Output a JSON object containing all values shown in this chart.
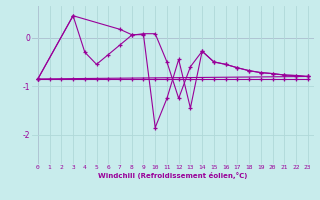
{
  "xlabel": "Windchill (Refroidissement éolien,°C)",
  "background_color": "#c8ecec",
  "grid_color": "#b0d8d8",
  "line_color": "#990099",
  "xlim": [
    -0.5,
    23.5
  ],
  "ylim": [
    -2.6,
    0.65
  ],
  "yticks": [
    -2,
    -1,
    0
  ],
  "xticks": [
    0,
    1,
    2,
    3,
    4,
    5,
    6,
    7,
    8,
    9,
    10,
    11,
    12,
    13,
    14,
    15,
    16,
    17,
    18,
    19,
    20,
    21,
    22,
    23
  ],
  "series_data": [
    {
      "x": [
        0,
        1,
        2,
        3,
        4,
        5,
        6,
        7,
        8,
        9,
        10,
        11,
        12,
        13,
        14,
        15,
        16,
        17,
        18,
        19,
        20,
        21,
        22,
        23
      ],
      "y": [
        -0.85,
        -0.85,
        -0.85,
        -0.85,
        -0.85,
        -0.85,
        -0.85,
        -0.85,
        -0.85,
        -0.85,
        -0.85,
        -0.85,
        -0.85,
        -0.85,
        -0.85,
        -0.85,
        -0.85,
        -0.85,
        -0.85,
        -0.85,
        -0.85,
        -0.85,
        -0.85,
        -0.85
      ]
    },
    {
      "x": [
        0,
        3,
        4,
        5,
        6,
        7,
        8,
        9,
        10,
        11,
        12,
        13,
        14,
        15,
        16,
        17,
        18,
        19,
        20,
        21,
        22,
        23
      ],
      "y": [
        -0.85,
        0.45,
        -0.3,
        -0.55,
        -0.35,
        -0.15,
        0.05,
        0.08,
        0.08,
        -0.5,
        -1.25,
        -0.6,
        -0.28,
        -0.5,
        -0.55,
        -0.62,
        -0.68,
        -0.72,
        -0.74,
        -0.77,
        -0.78,
        -0.8
      ]
    },
    {
      "x": [
        0,
        3,
        7,
        8,
        9,
        10,
        11,
        12,
        13,
        14,
        15,
        16,
        17,
        18,
        19,
        20,
        21,
        22,
        23
      ],
      "y": [
        -0.85,
        0.45,
        0.17,
        0.06,
        0.06,
        -1.85,
        -1.25,
        -0.45,
        -1.45,
        -0.28,
        -0.5,
        -0.55,
        -0.62,
        -0.68,
        -0.72,
        -0.74,
        -0.77,
        -0.78,
        -0.8
      ]
    },
    {
      "x": [
        0,
        23
      ],
      "y": [
        -0.85,
        -0.8
      ]
    }
  ]
}
